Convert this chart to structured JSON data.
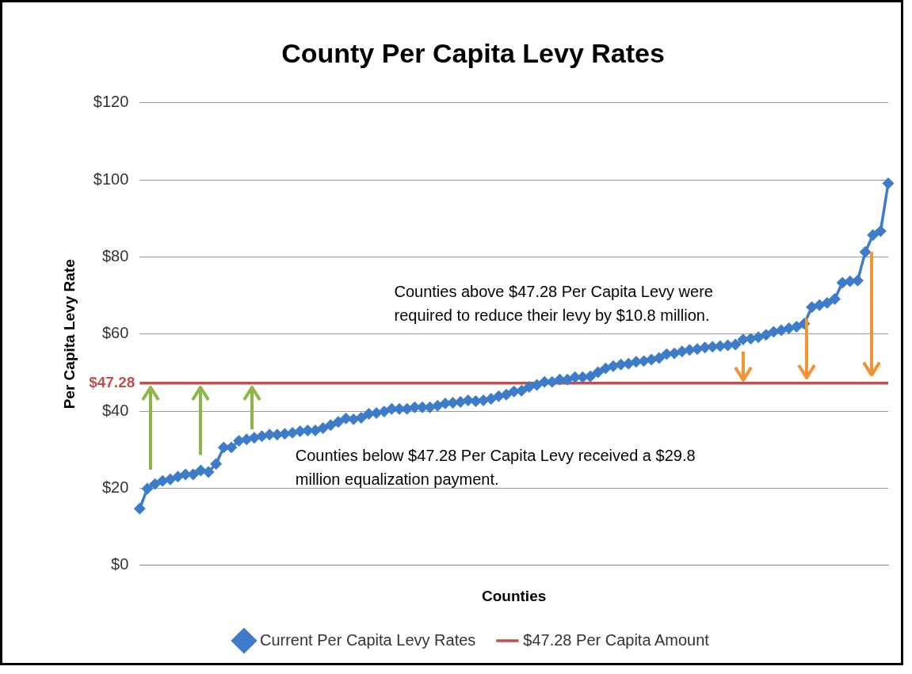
{
  "chart_data": {
    "type": "line",
    "title": "County Per Capita Levy Rates",
    "xlabel": "Counties",
    "ylabel": "Per Capita Levy Rate",
    "categories": [
      null,
      null,
      null,
      null,
      null,
      null,
      null,
      null,
      null,
      null,
      null,
      null,
      null,
      null,
      null,
      null,
      null,
      null,
      null,
      null,
      null,
      null,
      null,
      null,
      null,
      null,
      null,
      null,
      null,
      null,
      null,
      null,
      null,
      null,
      null,
      null,
      null,
      null,
      null,
      null,
      null,
      null,
      null,
      null,
      null,
      null,
      null,
      null,
      null,
      null,
      null,
      null,
      null,
      null,
      null,
      null,
      null,
      null,
      null,
      null,
      null,
      null,
      null,
      null,
      null,
      null,
      null,
      null,
      null,
      null,
      null,
      null,
      null,
      null,
      null,
      null,
      null,
      null,
      null,
      null,
      null,
      null,
      null,
      null,
      null,
      null,
      null,
      null,
      null,
      null,
      null,
      null,
      null,
      null,
      null,
      null,
      null,
      null,
      null
    ],
    "series": [
      {
        "name": "Current Per Capita Levy Rates",
        "color": "#3d7cc9",
        "marker": "diamond",
        "values": [
          14.7,
          19.9,
          21.1,
          21.9,
          22.3,
          23.0,
          23.6,
          23.6,
          24.6,
          24.2,
          26.3,
          30.6,
          30.6,
          32.3,
          32.7,
          33.1,
          33.5,
          33.9,
          33.9,
          34.1,
          34.4,
          34.8,
          35.0,
          35.0,
          35.6,
          36.4,
          37.2,
          38.1,
          37.9,
          38.3,
          39.3,
          39.5,
          39.9,
          40.6,
          40.6,
          40.6,
          41.0,
          41.0,
          41.0,
          41.4,
          42.0,
          42.2,
          42.4,
          42.8,
          42.6,
          42.8,
          43.2,
          43.9,
          44.3,
          45.1,
          45.3,
          46.3,
          46.8,
          47.6,
          47.6,
          48.2,
          48.2,
          48.8,
          48.8,
          49.0,
          50.1,
          51.1,
          51.7,
          52.1,
          52.3,
          52.8,
          53.0,
          53.4,
          53.8,
          54.8,
          55.0,
          55.5,
          55.9,
          56.1,
          56.5,
          56.7,
          56.9,
          57.1,
          57.3,
          58.6,
          58.8,
          59.2,
          59.8,
          60.6,
          61.0,
          61.5,
          61.9,
          62.7,
          67.0,
          67.5,
          68.1,
          69.1,
          73.3,
          73.7,
          73.9,
          81.3,
          85.7,
          86.7,
          99.1
        ]
      },
      {
        "name": "$47.28 Per Capita Amount",
        "color": "#c0504d",
        "marker": "none",
        "values": [
          47.28,
          47.28,
          47.28,
          47.28,
          47.28,
          47.28,
          47.28,
          47.28,
          47.28,
          47.28,
          47.28,
          47.28,
          47.28,
          47.28,
          47.28,
          47.28,
          47.28,
          47.28,
          47.28,
          47.28,
          47.28,
          47.28,
          47.28,
          47.28,
          47.28,
          47.28,
          47.28,
          47.28,
          47.28,
          47.28,
          47.28,
          47.28,
          47.28,
          47.28,
          47.28,
          47.28,
          47.28,
          47.28,
          47.28,
          47.28,
          47.28,
          47.28,
          47.28,
          47.28,
          47.28,
          47.28,
          47.28,
          47.28,
          47.28,
          47.28,
          47.28,
          47.28,
          47.28,
          47.28,
          47.28,
          47.28,
          47.28,
          47.28,
          47.28,
          47.28,
          47.28,
          47.28,
          47.28,
          47.28,
          47.28,
          47.28,
          47.28,
          47.28,
          47.28,
          47.28,
          47.28,
          47.28,
          47.28,
          47.28,
          47.28,
          47.28,
          47.28,
          47.28,
          47.28,
          47.28,
          47.28,
          47.28,
          47.28,
          47.28,
          47.28,
          47.28,
          47.28,
          47.28,
          47.28,
          47.28,
          47.28,
          47.28,
          47.28,
          47.28,
          47.28,
          47.28,
          47.28,
          47.28,
          47.28
        ]
      }
    ],
    "ylim": [
      0,
      120
    ],
    "yticks": [
      {
        "value": 0,
        "label": "$0"
      },
      {
        "value": 20,
        "label": "$20"
      },
      {
        "value": 40,
        "label": "$40"
      },
      {
        "value": 60,
        "label": "$60"
      },
      {
        "value": 80,
        "label": "$80"
      },
      {
        "value": 100,
        "label": "$100"
      },
      {
        "value": 120,
        "label": "$120"
      }
    ],
    "grid": "y",
    "legend": "bottom",
    "annotations": [
      "Counties above $47.28 Per Capita Levy were required to reduce their levy by $10.8 million.",
      "Counties below $47.28 Per Capita Levy received a $29.8 million equalization payment.",
      "$47.28"
    ]
  }
}
